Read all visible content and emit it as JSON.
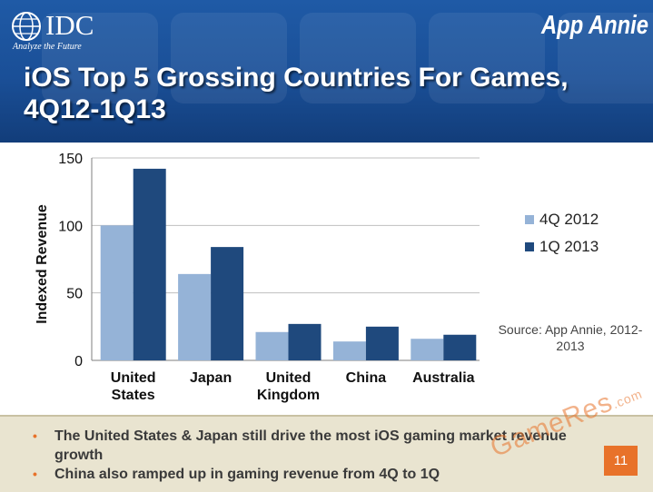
{
  "header": {
    "logo_left": {
      "name": "IDC",
      "tagline": "Analyze the Future"
    },
    "logo_right": {
      "name": "App Annie"
    },
    "title": "iOS Top 5 Grossing Countries For Games, 4Q12-1Q13",
    "colors": {
      "background": "#1a4f97"
    }
  },
  "chart_data": {
    "type": "bar",
    "title": "",
    "xlabel": "",
    "ylabel": "Indexed Revenue",
    "ylim": [
      0,
      150
    ],
    "yticks": [
      "0",
      "50",
      "100",
      "150"
    ],
    "categories": [
      "United States",
      "Japan",
      "United Kingdom",
      "China",
      "Australia"
    ],
    "series": [
      {
        "name": "4Q 2012",
        "color": "#95b3d7",
        "values": [
          100,
          64,
          21,
          14,
          16
        ]
      },
      {
        "name": "1Q 2013",
        "color": "#1f497d",
        "values": [
          142,
          84,
          27,
          25,
          19
        ]
      }
    ],
    "grid": true,
    "legend_position": "right"
  },
  "source_note": "Source: App Annie, 2012-2013",
  "footer": {
    "bullets": [
      "The United States & Japan still drive the most iOS gaming market revenue growth",
      "China also ramped up in gaming revenue from 4Q to 1Q"
    ],
    "bullet_marker": "•",
    "page_number": "11",
    "watermark": "GameRes",
    "watermark_suffix": ".com",
    "accent_color": "#e8722a"
  }
}
